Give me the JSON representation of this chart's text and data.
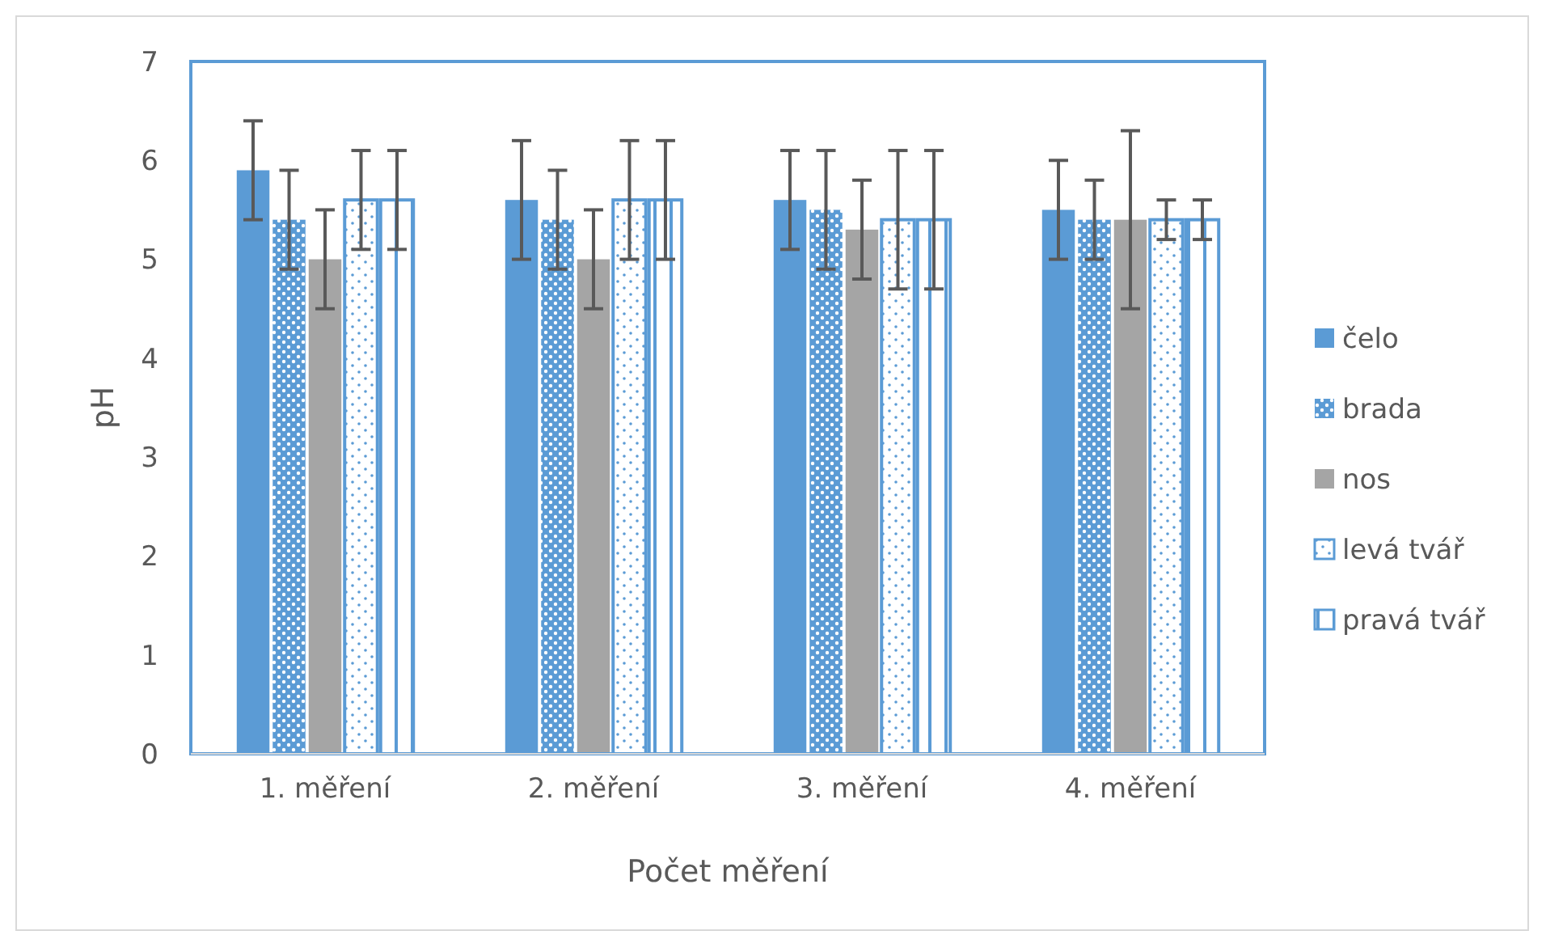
{
  "chart_data": {
    "type": "bar",
    "xlabel": "Počet měření",
    "ylabel": "pH",
    "categories": [
      "1. měření",
      "2. měření",
      "3. měření",
      "4. měření"
    ],
    "series": [
      {
        "name": "čelo",
        "color": "#5b9bd5",
        "values": [
          5.9,
          5.6,
          5.6,
          5.5
        ],
        "errors": [
          0.5,
          0.6,
          0.5,
          0.5
        ]
      },
      {
        "name": "brada",
        "color": "#5b9bd5",
        "values": [
          5.4,
          5.4,
          5.5,
          5.4
        ],
        "errors": [
          0.5,
          0.5,
          0.6,
          0.4
        ]
      },
      {
        "name": "nos",
        "color": "#a5a5a5",
        "values": [
          5.0,
          5.0,
          5.3,
          5.4
        ],
        "errors": [
          0.5,
          0.5,
          0.5,
          0.9
        ]
      },
      {
        "name": "levá tvář",
        "color": "#5b9bd5",
        "values": [
          5.6,
          5.6,
          5.4,
          5.4
        ],
        "errors": [
          0.5,
          0.6,
          0.7,
          0.2
        ]
      },
      {
        "name": "pravá tvář",
        "color": "#5b9bd5",
        "values": [
          5.6,
          5.6,
          5.4,
          5.4
        ],
        "errors": [
          0.5,
          0.6,
          0.7,
          0.2
        ]
      }
    ],
    "ylim": [
      0,
      7
    ],
    "yticks": [
      0,
      1,
      2,
      3,
      4,
      5,
      6,
      7
    ],
    "grid": false,
    "legend": "right"
  }
}
